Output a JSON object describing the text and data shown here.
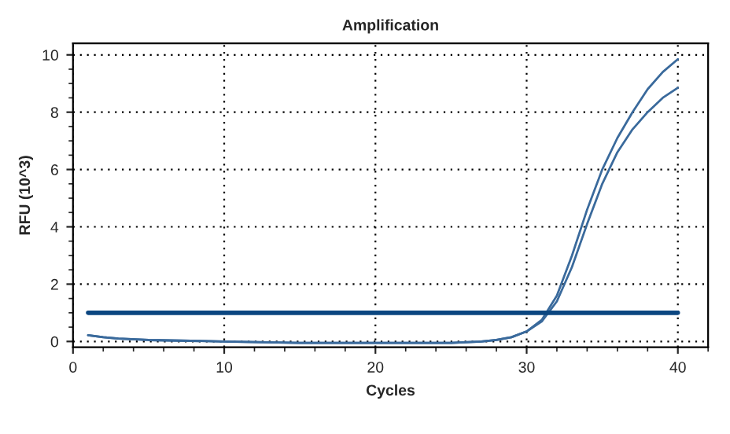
{
  "chart_data": {
    "type": "line",
    "title": "Amplification",
    "xlabel": "Cycles",
    "ylabel": "RFU (10^3)",
    "xlim": [
      0,
      42
    ],
    "ylim": [
      -0.2,
      10.4
    ],
    "xticks": [
      0,
      10,
      20,
      30,
      40
    ],
    "yticks": [
      0,
      2,
      4,
      6,
      8,
      10
    ],
    "grid": true,
    "line_style": "solid",
    "marker": "none",
    "series": [
      {
        "color": "#3a6a9c",
        "x": [
          1,
          2,
          3,
          5,
          10,
          15,
          20,
          25,
          27,
          28,
          29,
          30,
          31,
          32,
          33,
          34,
          35,
          36,
          37,
          38,
          39,
          40
        ],
        "values": [
          0.22,
          0.15,
          0.1,
          0.05,
          0.0,
          -0.05,
          -0.05,
          -0.05,
          0.0,
          0.05,
          0.15,
          0.35,
          0.75,
          1.6,
          3.0,
          4.6,
          6.0,
          7.1,
          8.0,
          8.8,
          9.4,
          9.85
        ]
      },
      {
        "color": "#3a6a9c",
        "x": [
          1,
          2,
          3,
          5,
          10,
          15,
          20,
          25,
          27,
          28,
          29,
          30,
          31,
          32,
          33,
          34,
          35,
          36,
          37,
          38,
          39,
          40
        ],
        "values": [
          0.22,
          0.15,
          0.1,
          0.05,
          0.0,
          -0.05,
          -0.05,
          -0.05,
          0.0,
          0.05,
          0.15,
          0.35,
          0.7,
          1.4,
          2.6,
          4.1,
          5.5,
          6.6,
          7.4,
          8.0,
          8.5,
          8.85
        ]
      },
      {
        "color": "#0b4680",
        "x": [
          1,
          40
        ],
        "values": [
          1.0,
          1.0
        ]
      }
    ]
  }
}
